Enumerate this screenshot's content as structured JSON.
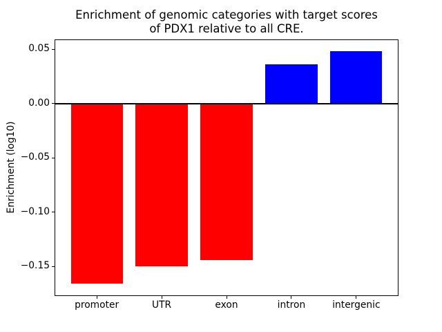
{
  "title": {
    "line1": "Enrichment of genomic categories with target scores",
    "line2": "of PDX1 relative to all CRE."
  },
  "chart_data": {
    "type": "bar",
    "title": "Enrichment of genomic categories with target scores\nof PDX1 relative to all CRE.",
    "xlabel": "",
    "ylabel": "Enrichment (log10)",
    "categories": [
      "promoter",
      "UTR",
      "exon",
      "intron",
      "intergenic"
    ],
    "values": [
      -0.166,
      -0.15,
      -0.144,
      0.036,
      0.048
    ],
    "bar_colors": [
      "#ff0000",
      "#ff0000",
      "#ff0000",
      "#0000ff",
      "#0000ff"
    ],
    "negative_color": "#ff0000",
    "positive_color": "#0000ff",
    "bar_width": 0.8,
    "xlim": [
      -0.64,
      4.64
    ],
    "ylim": [
      -0.1767,
      0.0587
    ],
    "yticks": [
      {
        "value": 0.05,
        "label": "0.05"
      },
      {
        "value": 0.0,
        "label": "0.00"
      },
      {
        "value": -0.05,
        "label": "−0.05"
      },
      {
        "value": -0.1,
        "label": "−0.10"
      },
      {
        "value": -0.15,
        "label": "−0.15"
      }
    ],
    "grid": false,
    "legend": null,
    "zero_line": true,
    "frame": true
  }
}
